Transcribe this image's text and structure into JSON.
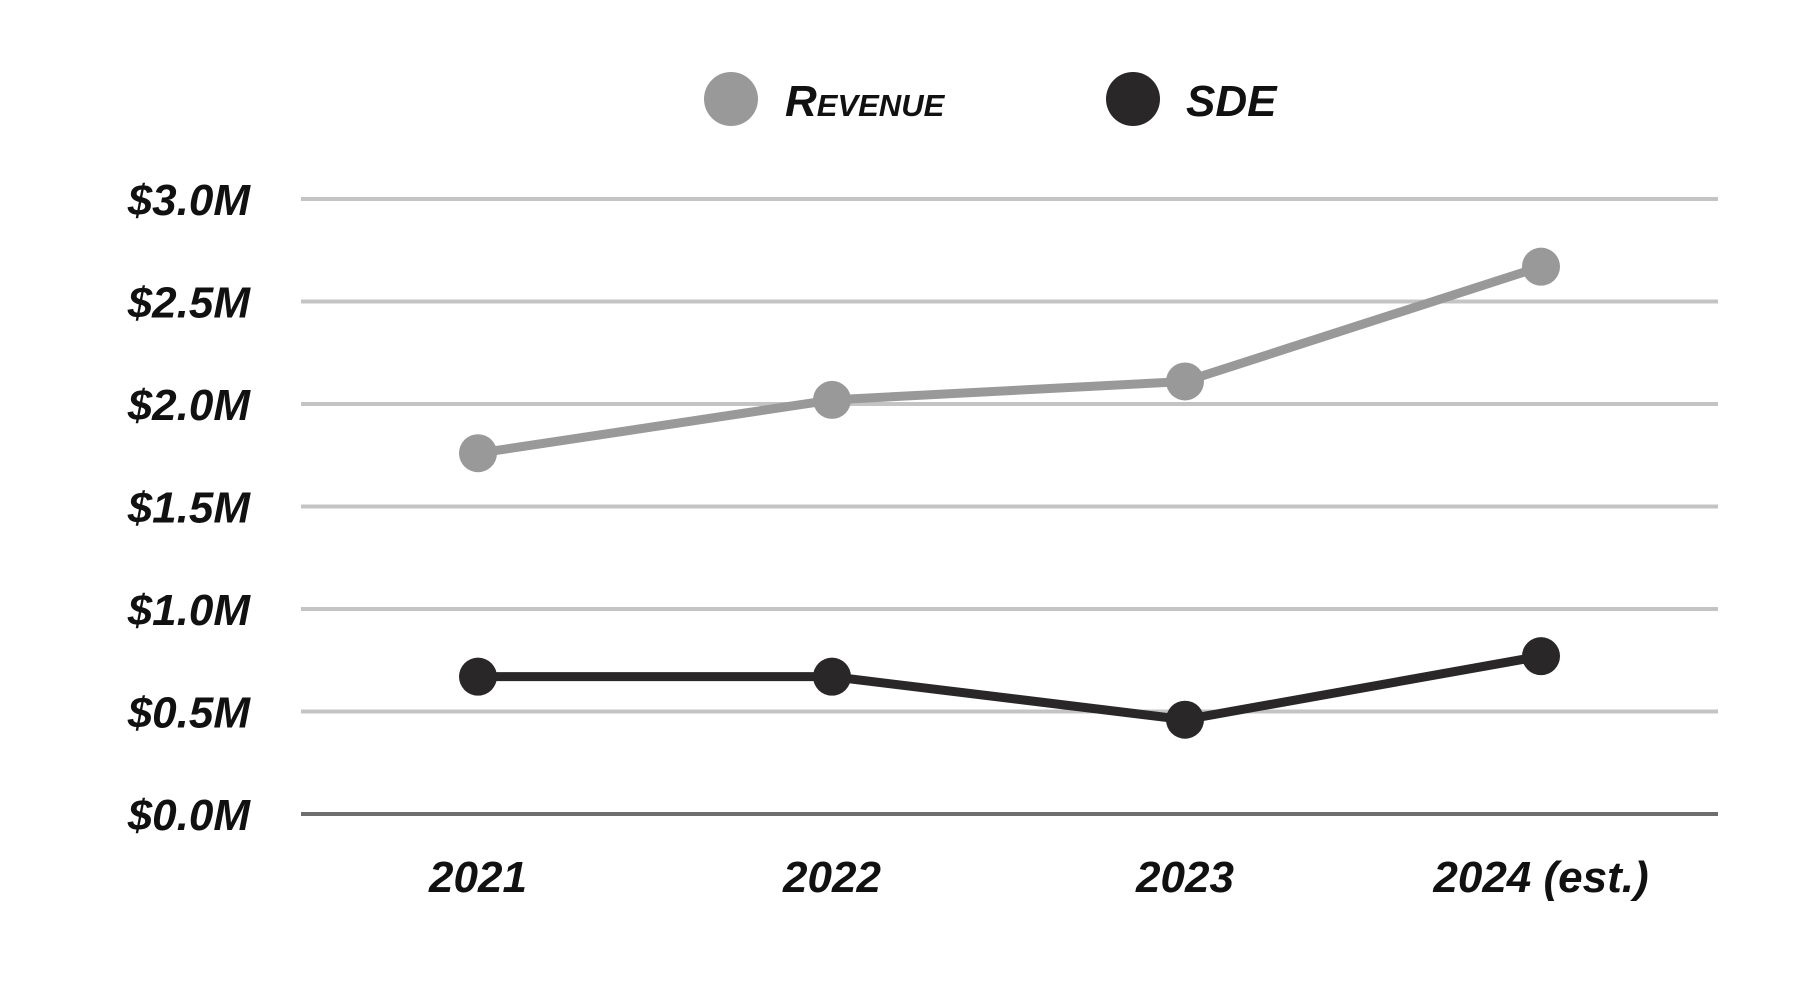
{
  "chart_data": {
    "type": "line",
    "title": "",
    "xlabel": "",
    "ylabel": "",
    "categories": [
      "2021",
      "2022",
      "2023",
      "2024 (est.)"
    ],
    "series": [
      {
        "name": "Revenue",
        "color": "#999999",
        "values": [
          1.76,
          2.02,
          2.11,
          2.67
        ]
      },
      {
        "name": "SDE",
        "color": "#2a2729",
        "values": [
          0.67,
          0.67,
          0.46,
          0.77
        ]
      }
    ],
    "ylim": [
      0,
      3.0
    ],
    "yticks": [
      0,
      0.5,
      1.0,
      1.5,
      2.0,
      2.5,
      3.0
    ],
    "ytick_labels": [
      "$0.0M",
      "$0.5M",
      "$1.0M",
      "$1.5M",
      "$2.0M",
      "$2.5M",
      "$3.0M"
    ],
    "grid": true,
    "legend_position": "top-center",
    "gridline_color": "#c4c4c4",
    "baseline_color": "#6e6e6e"
  }
}
